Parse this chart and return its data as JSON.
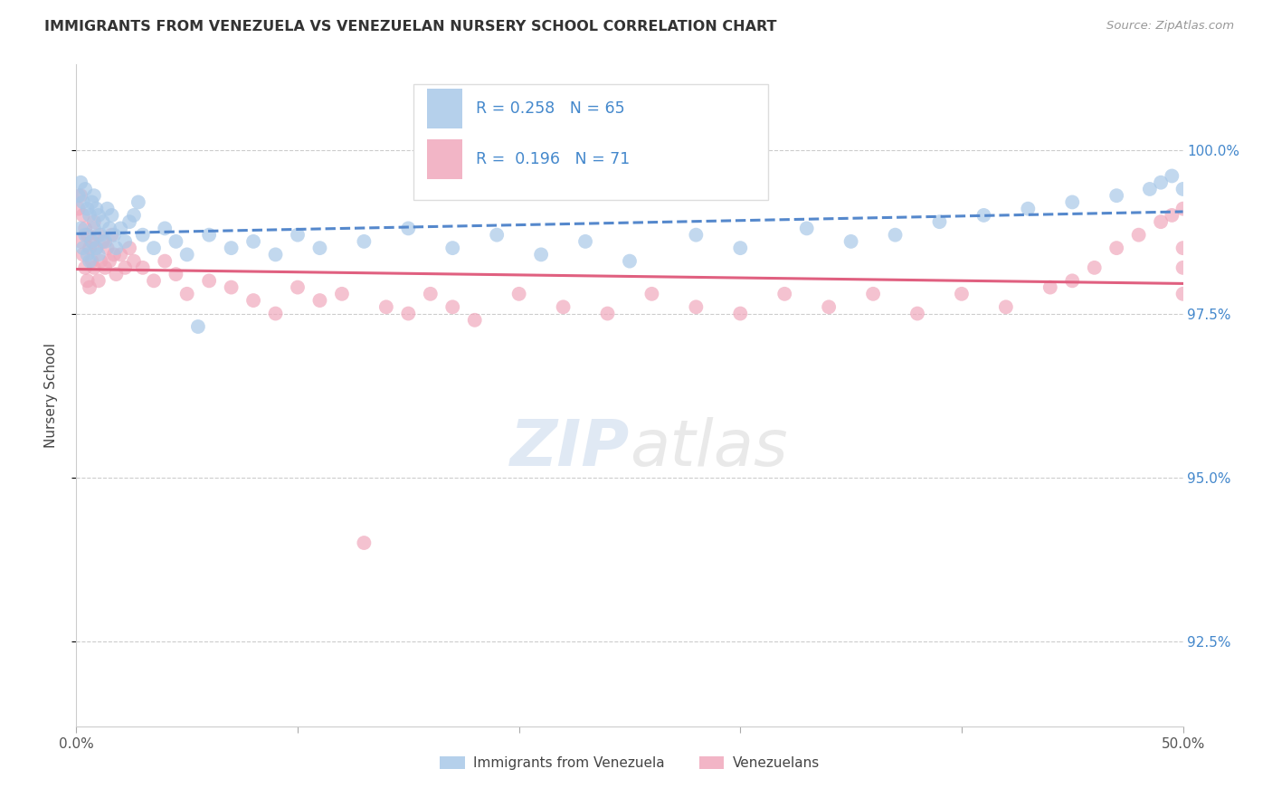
{
  "title": "IMMIGRANTS FROM VENEZUELA VS VENEZUELAN NURSERY SCHOOL CORRELATION CHART",
  "source": "Source: ZipAtlas.com",
  "ylabel": "Nursery School",
  "ytick_vals": [
    92.5,
    95.0,
    97.5,
    100.0
  ],
  "xmin": 0.0,
  "xmax": 50.0,
  "ymin": 91.2,
  "ymax": 101.3,
  "legend1_label": "Immigrants from Venezuela",
  "legend2_label": "Venezuelans",
  "R1": 0.258,
  "N1": 65,
  "R2": 0.196,
  "N2": 71,
  "color_blue": "#A8C8E8",
  "color_pink": "#F0A8BC",
  "line_blue": "#5588CC",
  "line_pink": "#E06080",
  "blue_x": [
    0.1,
    0.2,
    0.2,
    0.3,
    0.3,
    0.4,
    0.4,
    0.5,
    0.5,
    0.6,
    0.6,
    0.7,
    0.7,
    0.8,
    0.8,
    0.9,
    0.9,
    1.0,
    1.0,
    1.1,
    1.2,
    1.3,
    1.4,
    1.5,
    1.6,
    1.7,
    1.8,
    2.0,
    2.2,
    2.4,
    2.6,
    2.8,
    3.0,
    3.5,
    4.0,
    4.5,
    5.0,
    5.5,
    6.0,
    7.0,
    8.0,
    9.0,
    10.0,
    11.0,
    13.0,
    15.0,
    17.0,
    19.0,
    21.0,
    23.0,
    25.0,
    28.0,
    30.0,
    33.0,
    35.0,
    37.0,
    39.0,
    41.0,
    43.0,
    45.0,
    47.0,
    48.5,
    49.0,
    49.5,
    50.0
  ],
  "blue_y": [
    99.3,
    99.5,
    98.8,
    99.2,
    98.5,
    99.4,
    98.7,
    99.1,
    98.4,
    99.0,
    98.3,
    99.2,
    98.6,
    99.3,
    98.8,
    99.1,
    98.5,
    99.0,
    98.4,
    98.7,
    98.9,
    98.6,
    99.1,
    98.8,
    99.0,
    98.7,
    98.5,
    98.8,
    98.6,
    98.9,
    99.0,
    99.2,
    98.7,
    98.5,
    98.8,
    98.6,
    98.4,
    97.3,
    98.7,
    98.5,
    98.6,
    98.4,
    98.7,
    98.5,
    98.6,
    98.8,
    98.5,
    98.7,
    98.4,
    98.6,
    98.3,
    98.7,
    98.5,
    98.8,
    98.6,
    98.7,
    98.9,
    99.0,
    99.1,
    99.2,
    99.3,
    99.4,
    99.5,
    99.6,
    99.4
  ],
  "pink_x": [
    0.1,
    0.2,
    0.2,
    0.3,
    0.3,
    0.4,
    0.4,
    0.5,
    0.5,
    0.6,
    0.6,
    0.7,
    0.7,
    0.8,
    0.8,
    0.9,
    1.0,
    1.0,
    1.1,
    1.2,
    1.3,
    1.4,
    1.5,
    1.6,
    1.7,
    1.8,
    2.0,
    2.2,
    2.4,
    2.6,
    3.0,
    3.5,
    4.0,
    4.5,
    5.0,
    6.0,
    7.0,
    8.0,
    9.0,
    10.0,
    11.0,
    12.0,
    13.0,
    14.0,
    15.0,
    16.0,
    17.0,
    18.0,
    20.0,
    22.0,
    24.0,
    26.0,
    28.0,
    30.0,
    32.0,
    34.0,
    36.0,
    38.0,
    40.0,
    42.0,
    44.0,
    45.0,
    46.0,
    47.0,
    48.0,
    49.0,
    49.5,
    50.0,
    50.0,
    50.0,
    50.0
  ],
  "pink_y": [
    99.1,
    99.3,
    98.6,
    99.0,
    98.4,
    98.8,
    98.2,
    98.7,
    98.0,
    98.5,
    97.9,
    98.3,
    98.6,
    98.9,
    98.2,
    98.5,
    98.7,
    98.0,
    98.3,
    98.6,
    98.2,
    98.5,
    98.3,
    98.7,
    98.4,
    98.1,
    98.4,
    98.2,
    98.5,
    98.3,
    98.2,
    98.0,
    98.3,
    98.1,
    97.8,
    98.0,
    97.9,
    97.7,
    97.5,
    97.9,
    97.7,
    97.8,
    94.0,
    97.6,
    97.5,
    97.8,
    97.6,
    97.4,
    97.8,
    97.6,
    97.5,
    97.8,
    97.6,
    97.5,
    97.8,
    97.6,
    97.8,
    97.5,
    97.8,
    97.6,
    97.9,
    98.0,
    98.2,
    98.5,
    98.7,
    98.9,
    99.0,
    99.1,
    98.5,
    97.8,
    98.2
  ]
}
